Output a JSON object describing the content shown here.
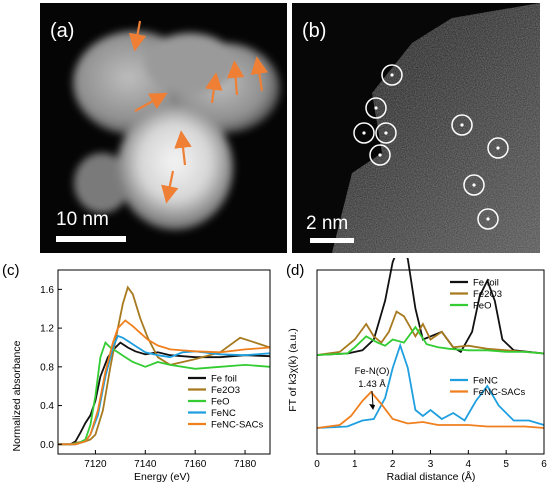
{
  "panels": {
    "a": {
      "label": "(a)",
      "scale_bar": "10 nm"
    },
    "b": {
      "label": "(b)",
      "scale_bar": "2 nm"
    },
    "c": {
      "label": "(c)"
    },
    "d": {
      "label": "(d)"
    }
  },
  "colors": {
    "Fe foil": "#111111",
    "Fe2O3": "#a77a1f",
    "FeO": "#33cc33",
    "FeNC": "#1f9fe0",
    "FeNC-SACs": "#f07f1e",
    "arrow": "#ee7f35"
  },
  "chart_data": [
    {
      "type": "line",
      "panel": "c",
      "xlabel": "Energy (eV)",
      "ylabel": "Normalized absorbance",
      "xlim": [
        7105,
        7190
      ],
      "ylim": [
        -0.1,
        1.8
      ],
      "xticks": [
        "7120",
        "7140",
        "7160",
        "7180"
      ],
      "yticks": [
        "0.0",
        "0.4",
        "0.8",
        "1.2",
        "1.6"
      ],
      "legend_position": "lower-right",
      "series": [
        {
          "name": "Fe foil",
          "x": [
            7105,
            7110,
            7112,
            7114,
            7116,
            7118,
            7120,
            7122,
            7125,
            7128,
            7130,
            7133,
            7136,
            7140,
            7145,
            7150,
            7160,
            7170,
            7180,
            7190
          ],
          "y": [
            0.0,
            0.0,
            0.03,
            0.12,
            0.22,
            0.3,
            0.45,
            0.7,
            0.9,
            1.0,
            1.05,
            1.0,
            0.96,
            0.93,
            0.95,
            0.92,
            0.9,
            0.9,
            0.92,
            0.91
          ]
        },
        {
          "name": "Fe2O3",
          "x": [
            7105,
            7110,
            7113,
            7116,
            7118,
            7120,
            7123,
            7126,
            7129,
            7131,
            7133,
            7135,
            7138,
            7141,
            7145,
            7150,
            7155,
            7160,
            7170,
            7178,
            7183,
            7190
          ],
          "y": [
            0.0,
            0.0,
            0.02,
            0.03,
            0.05,
            0.1,
            0.35,
            0.8,
            1.2,
            1.45,
            1.62,
            1.55,
            1.3,
            1.1,
            0.9,
            0.82,
            0.85,
            0.88,
            0.95,
            1.1,
            1.06,
            1.0
          ]
        },
        {
          "name": "FeO",
          "x": [
            7105,
            7110,
            7113,
            7116,
            7118,
            7120,
            7122,
            7124,
            7126,
            7129,
            7132,
            7135,
            7140,
            7145,
            7150,
            7160,
            7170,
            7180,
            7190
          ],
          "y": [
            0.0,
            0.0,
            0.01,
            0.05,
            0.2,
            0.5,
            0.9,
            1.05,
            1.0,
            0.95,
            0.9,
            0.85,
            0.8,
            0.85,
            0.82,
            0.78,
            0.8,
            0.82,
            0.8
          ]
        },
        {
          "name": "FeNC",
          "x": [
            7105,
            7112,
            7116,
            7118,
            7121,
            7124,
            7127,
            7129,
            7131,
            7134,
            7137,
            7140,
            7145,
            7150,
            7155,
            7160,
            7170,
            7180,
            7190
          ],
          "y": [
            0.0,
            0.0,
            0.03,
            0.1,
            0.3,
            0.7,
            1.0,
            1.12,
            1.1,
            1.05,
            1.0,
            0.95,
            0.92,
            0.9,
            0.95,
            0.96,
            0.93,
            0.92,
            0.94
          ]
        },
        {
          "name": "FeNC-SACs",
          "x": [
            7105,
            7112,
            7116,
            7118,
            7121,
            7124,
            7127,
            7129,
            7132,
            7135,
            7138,
            7141,
            7145,
            7150,
            7155,
            7160,
            7170,
            7180,
            7190
          ],
          "y": [
            0.0,
            0.0,
            0.03,
            0.1,
            0.35,
            0.75,
            1.05,
            1.2,
            1.28,
            1.22,
            1.15,
            1.08,
            1.02,
            0.98,
            0.97,
            0.96,
            0.95,
            0.98,
            1.0
          ]
        }
      ]
    },
    {
      "type": "line",
      "panel": "d",
      "xlabel": "Radial distance (Å)",
      "ylabel": "FT of k3χ(k) (a.u.)",
      "xlim": [
        0,
        6
      ],
      "xticks": [
        "0",
        "1",
        "2",
        "3",
        "4",
        "5",
        "6"
      ],
      "annotation": {
        "text": [
          "Fe-N(O)",
          "1.43 Å"
        ],
        "x": 1.43
      },
      "legends": [
        {
          "position": "upper-right",
          "entries": [
            "Fe foil",
            "Fe2O3",
            "FeO"
          ]
        },
        {
          "position": "middle-right",
          "entries": [
            "FeNC",
            "FeNC-SACs"
          ]
        }
      ],
      "series": [
        {
          "name": "Fe foil",
          "group": "upper",
          "x": [
            0,
            0.8,
            1.2,
            1.5,
            1.8,
            2.0,
            2.2,
            2.4,
            2.6,
            2.8,
            3.0,
            3.3,
            3.6,
            3.8,
            4.1,
            4.3,
            4.5,
            4.7,
            4.9,
            5.2,
            5.6,
            6.0
          ],
          "y": [
            0,
            0.01,
            0.03,
            0.1,
            0.35,
            0.6,
            0.72,
            0.62,
            0.3,
            0.1,
            0.12,
            0.15,
            0.05,
            0.02,
            0.15,
            0.38,
            0.48,
            0.35,
            0.1,
            0.03,
            0.02,
            0.01
          ]
        },
        {
          "name": "Fe2O3",
          "group": "upper",
          "x": [
            0,
            0.6,
            1.0,
            1.3,
            1.5,
            1.7,
            1.9,
            2.1,
            2.3,
            2.6,
            2.8,
            3.0,
            3.3,
            3.6,
            4.0,
            4.5,
            5.0,
            5.5,
            6.0
          ],
          "y": [
            0,
            0.02,
            0.1,
            0.2,
            0.12,
            0.08,
            0.15,
            0.28,
            0.25,
            0.12,
            0.2,
            0.1,
            0.15,
            0.05,
            0.06,
            0.04,
            0.03,
            0.02,
            0.01
          ]
        },
        {
          "name": "FeO",
          "group": "upper",
          "x": [
            0,
            0.8,
            1.0,
            1.3,
            1.6,
            1.8,
            2.0,
            2.3,
            2.6,
            2.9,
            3.2,
            3.5,
            4.0,
            4.5,
            5.0,
            5.5,
            6.0
          ],
          "y": [
            0,
            0.01,
            0.05,
            0.12,
            0.08,
            0.06,
            0.1,
            0.08,
            0.18,
            0.07,
            0.05,
            0.04,
            0.03,
            0.03,
            0.02,
            0.02,
            0.01
          ]
        },
        {
          "name": "FeNC",
          "group": "lower",
          "x": [
            0,
            0.8,
            1.2,
            1.5,
            1.8,
            2.0,
            2.2,
            2.4,
            2.6,
            2.8,
            3.0,
            3.3,
            3.6,
            3.9,
            4.2,
            4.5,
            4.8,
            5.2,
            5.6,
            6.0
          ],
          "y": [
            0,
            0.01,
            0.05,
            0.06,
            0.2,
            0.4,
            0.55,
            0.4,
            0.12,
            0.08,
            0.12,
            0.06,
            0.1,
            0.05,
            0.18,
            0.28,
            0.15,
            0.05,
            0.05,
            0.02
          ]
        },
        {
          "name": "FeNC-SACs",
          "group": "lower",
          "x": [
            0,
            0.6,
            0.9,
            1.2,
            1.43,
            1.7,
            2.0,
            2.4,
            2.8,
            3.2,
            3.6,
            4.0,
            4.5,
            5.0,
            5.5,
            6.0
          ],
          "y": [
            0,
            0.02,
            0.08,
            0.18,
            0.24,
            0.16,
            0.06,
            0.03,
            0.04,
            0.02,
            0.02,
            0.02,
            0.01,
            0.01,
            0.01,
            0.0
          ]
        }
      ]
    }
  ]
}
